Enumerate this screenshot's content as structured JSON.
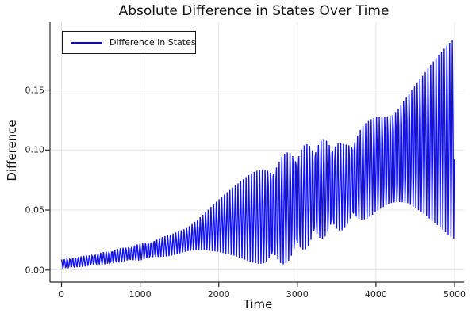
{
  "figure": {
    "background": "#ffffff",
    "text_color": "#191919",
    "grid_color": "#e4e4e4",
    "spine_color": "#2b2b2b"
  },
  "chart_data": {
    "type": "line",
    "title": "Absolute Difference in States Over Time",
    "xlabel": "Time",
    "ylabel": "Difference",
    "xlim": [
      -150,
      5120
    ],
    "ylim": [
      -0.01,
      0.206
    ],
    "xticks": [
      0,
      1000,
      2000,
      3000,
      4000,
      5000
    ],
    "xtick_labels": [
      "0",
      "1000",
      "2000",
      "3000",
      "4000",
      "5000"
    ],
    "yticks": [
      0,
      0.05,
      0.1,
      0.15
    ],
    "ytick_labels": [
      "0.00",
      "0.05",
      "0.10",
      "0.15"
    ],
    "grid": true,
    "legend": {
      "position": "top-left",
      "entries": [
        {
          "label": "Difference in States",
          "color": "#0202ee"
        }
      ]
    },
    "series": [
      {
        "name": "Difference in States",
        "color": "#0202ee",
        "description": "Absolute difference between two states; fast oscillation (period ~35 time units) bounded by slowly varying lower/upper envelopes sampled below; lower envelope pinches to ~0 near t=2600; maximum ~0.195 at t=5000.",
        "envelope_t": [
          0,
          200,
          400,
          600,
          800,
          1000,
          1200,
          1400,
          1600,
          1800,
          2000,
          2200,
          2400,
          2600,
          2800,
          3000,
          3200,
          3400,
          3600,
          3800,
          4000,
          4200,
          4400,
          4600,
          4800,
          5000
        ],
        "envelope_upper": [
          0.009,
          0.011,
          0.013,
          0.016,
          0.019,
          0.022,
          0.026,
          0.03,
          0.036,
          0.047,
          0.059,
          0.07,
          0.08,
          0.088,
          0.096,
          0.102,
          0.107,
          0.11,
          0.105,
          0.119,
          0.129,
          0.134,
          0.151,
          0.165,
          0.18,
          0.195
        ],
        "envelope_lower": [
          0.001,
          0.002,
          0.004,
          0.005,
          0.007,
          0.008,
          0.01,
          0.012,
          0.015,
          0.016,
          0.015,
          0.012,
          0.007,
          0.002,
          0.003,
          0.012,
          0.022,
          0.029,
          0.034,
          0.04,
          0.047,
          0.05,
          0.05,
          0.045,
          0.036,
          0.024
        ],
        "oscillation": {
          "fast_period": 35,
          "sample_step": 8.6,
          "period_wobble": 0.8,
          "wobble_period": 2600,
          "phase": -0.3
        }
      }
    ]
  }
}
